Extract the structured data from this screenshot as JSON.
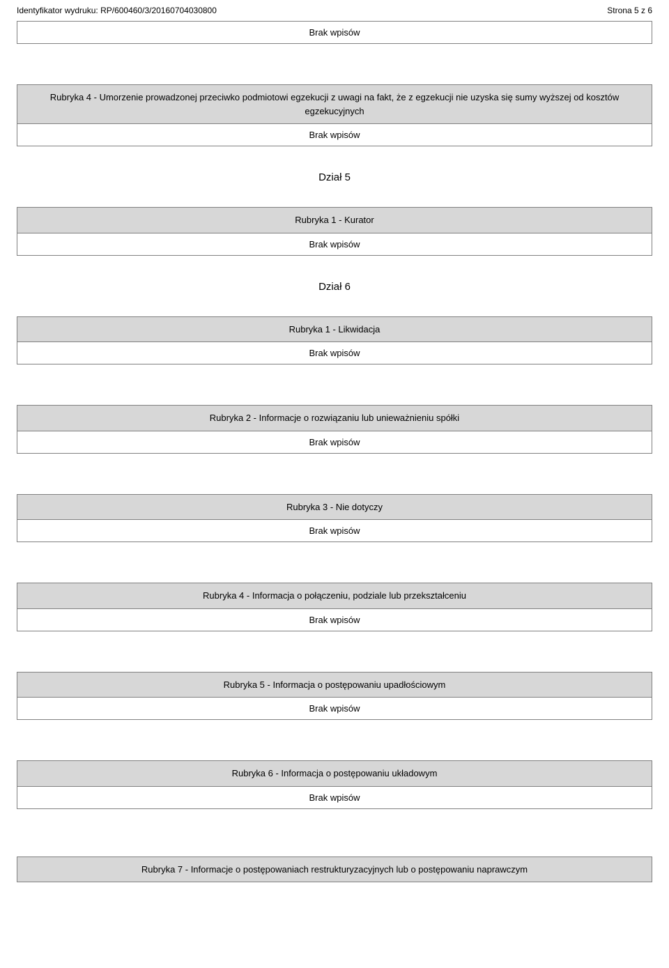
{
  "header": {
    "printout_id_label": "Identyfikator wydruku:",
    "printout_id_value": "RP/600460/3/20160704030800",
    "page_label": "Strona 5 z 6"
  },
  "empty_text": "Brak wpisów",
  "sections": {
    "rubryka4_top": "Rubryka 4 - Umorzenie prowadzonej przeciwko podmiotowi egzekucji z uwagi na fakt, że z egzekucji nie uzyska się sumy wyższej od kosztów egzekucyjnych",
    "dzial5": "Dział 5",
    "rubryka1_kurator": "Rubryka 1 - Kurator",
    "dzial6": "Dział 6",
    "rubryka1_likwidacja": "Rubryka 1 - Likwidacja",
    "rubryka2": "Rubryka 2 - Informacje o rozwiązaniu lub unieważnieniu spółki",
    "rubryka3": "Rubryka 3 - Nie dotyczy",
    "rubryka4_polaczenie": "Rubryka 4 - Informacja o połączeniu, podziale lub przekształceniu",
    "rubryka5": "Rubryka 5 - Informacja o postępowaniu upadłościowym",
    "rubryka6": "Rubryka 6 - Informacja o postępowaniu układowym",
    "rubryka7": "Rubryka 7 - Informacje o postępowaniach restrukturyzacyjnych lub o postępowaniu naprawczym"
  },
  "colors": {
    "header_bg": "#d7d7d7",
    "border": "#808080",
    "text": "#000000",
    "background": "#ffffff"
  }
}
